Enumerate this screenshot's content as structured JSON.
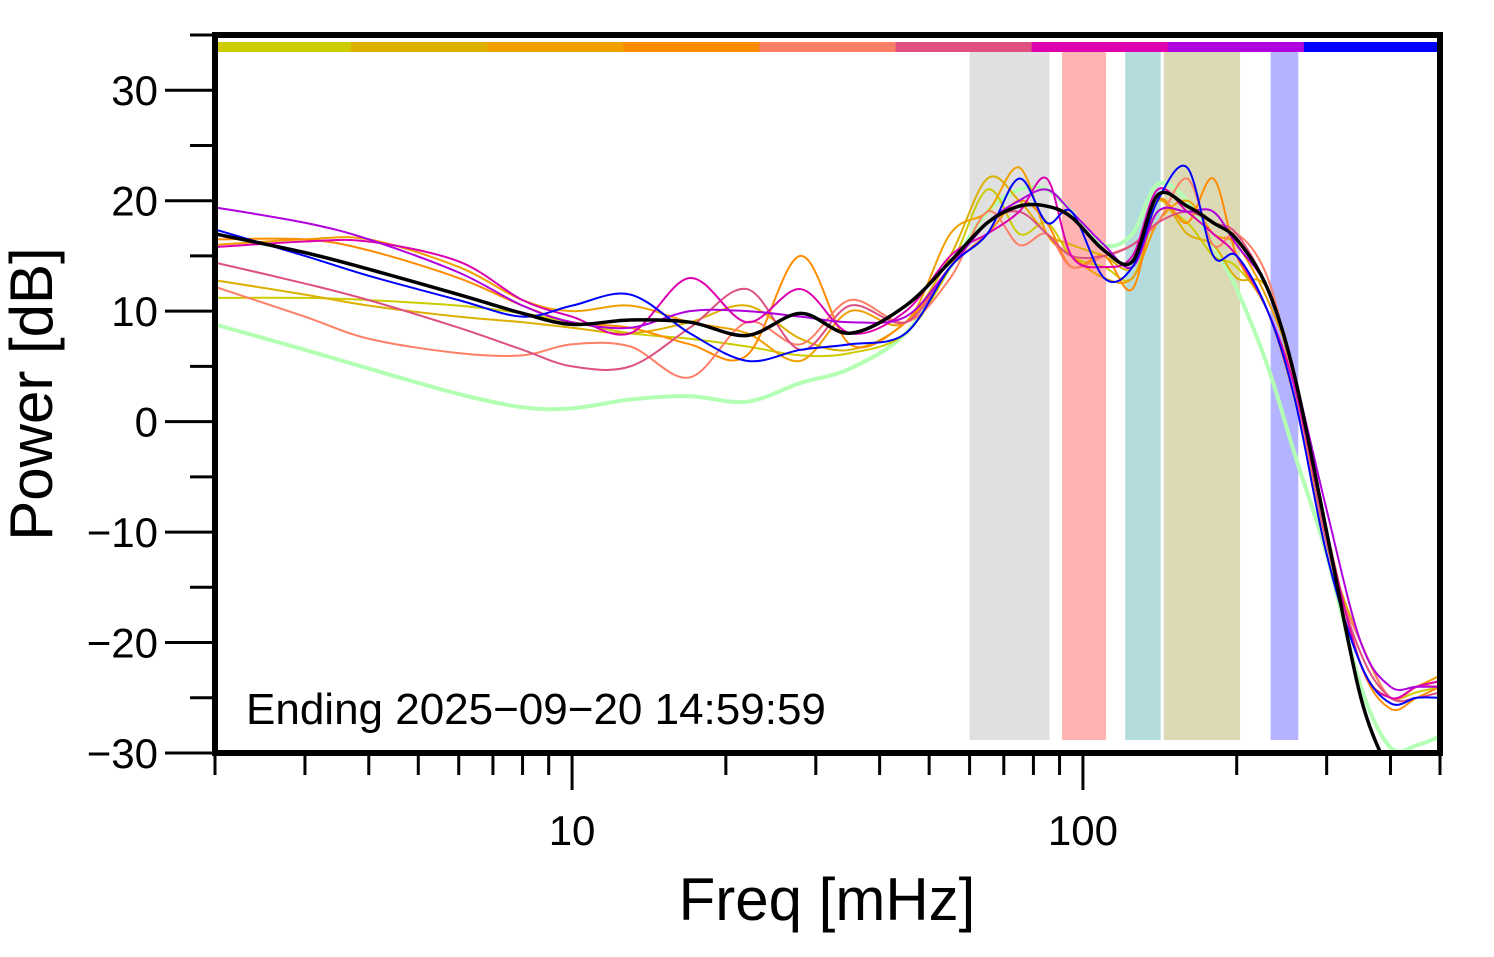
{
  "chart_data": {
    "type": "line",
    "xlabel": "Freq [mHz]",
    "ylabel": "Power [dB]",
    "xscale": "log",
    "xlim": [
      2,
      500
    ],
    "ylim": [
      -30,
      35
    ],
    "yticks": [
      30,
      20,
      10,
      0,
      -10,
      -20,
      -30
    ],
    "ytick_labels": [
      "30",
      "20",
      "10",
      "0",
      "−10",
      "−20",
      "−30"
    ],
    "xticks": [
      10,
      100
    ],
    "xtick_labels": [
      "10",
      "100"
    ],
    "grid": false,
    "annotation": "Ending 2025−09−20 14:59:59",
    "colorbar_segments": [
      "#cccc00",
      "#ddb000",
      "#f0a000",
      "#ff8c00",
      "#ff7f66",
      "#dd5080",
      "#dd00b0",
      "#b000dd",
      "#0000ff"
    ],
    "bands": [
      {
        "from": 60,
        "to": 86,
        "color": "#e0e0e0"
      },
      {
        "from": 91,
        "to": 111,
        "color": "#ffb3b3"
      },
      {
        "from": 121,
        "to": 142,
        "color": "#b5dcdd"
      },
      {
        "from": 144,
        "to": 203,
        "color": "#dcdab4"
      },
      {
        "from": 233,
        "to": 264,
        "color": "#b3b3ff"
      }
    ],
    "x": [
      2,
      3,
      4,
      6,
      8,
      10,
      13,
      17,
      22,
      28,
      35,
      45,
      55,
      65,
      75,
      85,
      95,
      110,
      125,
      140,
      160,
      180,
      200,
      230,
      260,
      300,
      350,
      400,
      450,
      500
    ],
    "series": [
      {
        "color": "#b3ffb3",
        "width": 4,
        "values": [
          8.8,
          6.5,
          4.8,
          2.5,
          1.3,
          1.2,
          2.0,
          2.3,
          1.8,
          3.5,
          4.8,
          8,
          14,
          19,
          21,
          21,
          19,
          16,
          17,
          21.5,
          20,
          16,
          12,
          5,
          -3,
          -12,
          -24,
          -29.5,
          -29.3,
          -28.5
        ]
      },
      {
        "color": "#cccc00",
        "width": 2,
        "values": [
          11.2,
          11.2,
          11,
          10.5,
          9.8,
          9,
          8,
          7.5,
          6.8,
          6,
          6.2,
          8,
          14,
          21,
          17,
          18,
          15,
          14,
          13,
          19,
          18,
          15,
          14,
          10,
          2,
          -10,
          -22,
          -25,
          -24.5,
          -24
        ]
      },
      {
        "color": "#ddb000",
        "width": 2,
        "values": [
          12.8,
          11.5,
          10.5,
          9.5,
          9,
          8.5,
          8,
          9,
          10.5,
          7.5,
          6.5,
          9,
          15,
          22,
          20,
          17,
          16,
          15,
          14,
          20,
          17,
          16,
          13,
          12,
          3,
          -11,
          -20,
          -25,
          -24,
          -23.5
        ]
      },
      {
        "color": "#f0a000",
        "width": 2,
        "values": [
          16,
          16.5,
          16.5,
          14,
          11,
          10,
          10.5,
          9,
          8,
          5.5,
          10,
          9,
          17,
          19,
          23,
          17,
          15,
          13,
          13,
          18,
          20,
          17,
          16,
          11,
          4,
          -10,
          -22,
          -25,
          -24,
          -23
        ]
      },
      {
        "color": "#ff8c00",
        "width": 2,
        "values": [
          16.5,
          16.5,
          15.5,
          13,
          10.5,
          9,
          8.5,
          7,
          6,
          15,
          7,
          9,
          14,
          17,
          20,
          18,
          14,
          15,
          12,
          20,
          18,
          22,
          15,
          10,
          2,
          -10,
          -22,
          -26,
          -25,
          -24
        ]
      },
      {
        "color": "#ff7f66",
        "width": 2,
        "values": [
          12.2,
          9.5,
          7.5,
          6.2,
          6,
          7,
          6.8,
          4,
          9,
          7,
          11,
          9,
          13,
          19,
          16,
          17,
          14,
          15,
          16,
          18,
          22,
          16,
          17,
          13,
          3,
          -12,
          -20,
          -25,
          -24,
          -24
        ]
      },
      {
        "color": "#dd5080",
        "width": 2,
        "values": [
          14.4,
          12.5,
          11,
          8.5,
          6.5,
          5,
          5,
          8.5,
          12,
          6.5,
          10.5,
          9,
          14,
          18,
          19,
          17,
          15,
          15,
          16,
          18,
          19,
          18,
          17,
          12,
          4,
          -11,
          -21,
          -25,
          -25,
          -24.5
        ]
      },
      {
        "color": "#dd00b0",
        "width": 2,
        "values": [
          15.8,
          16.3,
          16.3,
          14.5,
          11,
          9.5,
          8,
          13,
          9,
          12,
          8,
          10,
          15,
          17,
          19,
          22,
          15,
          14,
          15,
          21,
          19,
          17,
          15,
          10,
          3,
          -10,
          -22,
          -25,
          -24,
          -23.5
        ]
      },
      {
        "color": "#b000dd",
        "width": 2,
        "values": [
          19.4,
          18,
          16.5,
          13.5,
          10.5,
          9,
          8.5,
          10,
          10,
          9.5,
          9,
          9.5,
          14,
          18,
          20,
          21,
          19,
          16,
          14,
          19,
          19,
          19,
          16,
          12,
          4,
          -8,
          -20,
          -24,
          -24,
          -24
        ]
      },
      {
        "color": "#0000ff",
        "width": 2,
        "values": [
          17.4,
          15,
          13.2,
          11,
          9.5,
          10.5,
          11.5,
          8,
          5.5,
          6.5,
          7,
          8,
          14,
          17,
          22,
          18,
          19,
          13,
          14,
          20,
          23,
          15,
          15,
          10,
          2,
          -12,
          -22,
          -25.5,
          -25,
          -25
        ]
      },
      {
        "color": "#000000",
        "width": 3.5,
        "values": [
          17,
          15.3,
          13.8,
          11.5,
          9.8,
          8.8,
          9.2,
          9.0,
          7.8,
          9.8,
          8.0,
          10.5,
          14.5,
          18,
          19.5,
          19.5,
          18.5,
          15.5,
          14.5,
          20.5,
          19.5,
          18,
          16.5,
          12,
          4,
          -10,
          -25,
          -32,
          null,
          null
        ]
      }
    ]
  }
}
